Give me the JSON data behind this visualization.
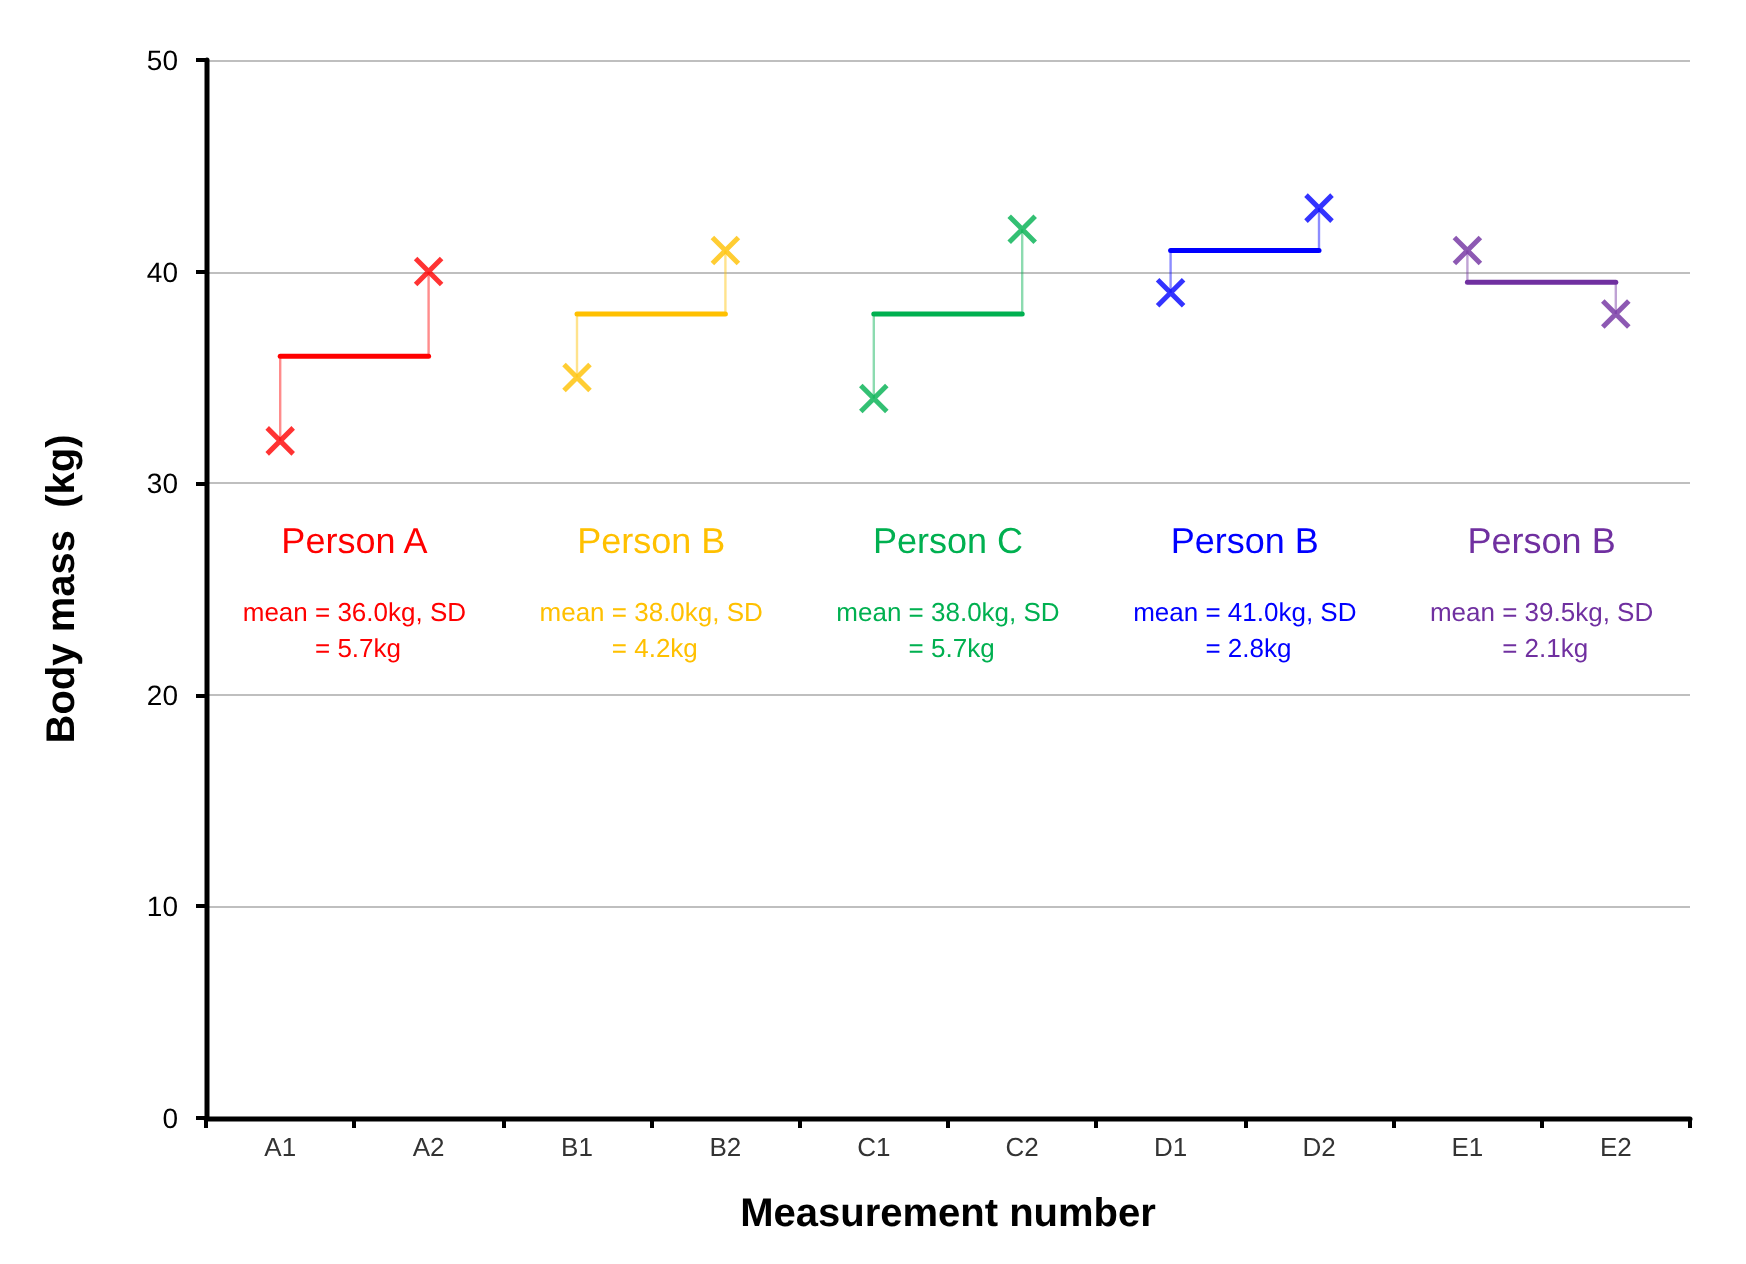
{
  "chart_data": {
    "type": "scatter",
    "xlabel": "Measurement number",
    "ylabel": "Body mass  (kg)",
    "categories": [
      "A1",
      "A2",
      "B1",
      "B2",
      "C1",
      "C2",
      "D1",
      "D2",
      "E1",
      "E2"
    ],
    "ylim": [
      0,
      50
    ],
    "yticks": [
      0,
      10,
      20,
      30,
      40,
      50
    ],
    "grid": "y",
    "legend": false,
    "marker": "cross",
    "series": [
      {
        "name": "Person A",
        "color": "#ff0000",
        "x": [
          "A1",
          "A2"
        ],
        "values": [
          32,
          40
        ],
        "errors": [
          [
            32,
            36
          ],
          [
            36,
            40
          ]
        ]
      },
      {
        "name": "Person B",
        "color": "#ffc000",
        "x": [
          "B1",
          "B2"
        ],
        "values": [
          35,
          41
        ],
        "errors": [
          [
            35,
            38
          ],
          [
            38,
            41
          ]
        ]
      },
      {
        "name": "Person C",
        "color": "#00b050",
        "x": [
          "C1",
          "C2"
        ],
        "values": [
          34,
          42
        ],
        "errors": [
          [
            34,
            38
          ],
          [
            38,
            42
          ]
        ]
      },
      {
        "name": "Person B",
        "color": "#0000ff",
        "x": [
          "D1",
          "D2"
        ],
        "values": [
          39,
          43
        ],
        "errors": [
          [
            39,
            41
          ],
          [
            41,
            43
          ]
        ]
      },
      {
        "name": "Person B",
        "color": "#7030a0",
        "x": [
          "E1",
          "E2"
        ],
        "values": [
          41,
          38
        ],
        "errors": [
          [
            39.5,
            41
          ],
          [
            38,
            39.5
          ]
        ]
      },
      {
        "type": "line",
        "color": "#ff0000",
        "x": [
          "A1",
          "A2"
        ],
        "values": [
          36,
          36
        ],
        "marker": "none"
      },
      {
        "type": "line",
        "color": "#ffc000",
        "x": [
          "B1",
          "B2"
        ],
        "values": [
          38,
          38
        ],
        "marker": "none"
      },
      {
        "type": "line",
        "color": "#00b050",
        "x": [
          "C1",
          "C2"
        ],
        "values": [
          38,
          38
        ],
        "marker": "none"
      },
      {
        "type": "line",
        "color": "#0000ff",
        "x": [
          "D1",
          "D2"
        ],
        "values": [
          41,
          41
        ],
        "marker": "none"
      },
      {
        "type": "line",
        "color": "#7030a0",
        "x": [
          "E1",
          "E2"
        ],
        "values": [
          39.5,
          39.5
        ],
        "marker": "none"
      }
    ],
    "annotations": [
      "mean = 36.0kg, SD = 5.7kg",
      "mean = 38.0kg, SD = 4.2kg",
      "mean = 38.0kg, SD = 5.7kg",
      "mean = 41.0kg, SD = 2.8kg",
      "mean = 39.5kg, SD = 2.1kg"
    ]
  }
}
